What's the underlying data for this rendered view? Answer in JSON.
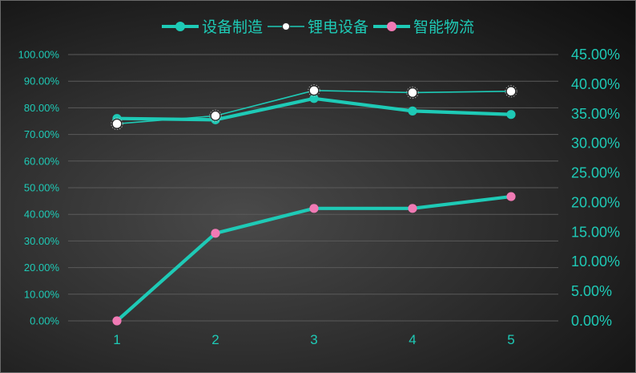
{
  "chart_data": {
    "type": "line",
    "x": [
      "1",
      "2",
      "3",
      "4",
      "5"
    ],
    "y_left": {
      "ylim": [
        0,
        1
      ],
      "ticks": [
        "0.00%",
        "10.00%",
        "20.00%",
        "30.00%",
        "40.00%",
        "50.00%",
        "60.00%",
        "70.00%",
        "80.00%",
        "90.00%",
        "100.00%"
      ]
    },
    "y_right": {
      "ylim": [
        0,
        0.45
      ],
      "ticks": [
        "0.00%",
        "5.00%",
        "10.00%",
        "15.00%",
        "20.00%",
        "25.00%",
        "30.00%",
        "35.00%",
        "40.00%",
        "45.00%"
      ]
    },
    "series": [
      {
        "name": "设备制造",
        "axis": "left",
        "values": [
          0.76,
          0.755,
          0.835,
          0.788,
          0.775
        ],
        "color": "#1ecab6",
        "marker_color": "#1ecab6",
        "style": "thick"
      },
      {
        "name": "锂电设备",
        "axis": "left",
        "values": [
          0.74,
          0.77,
          0.865,
          0.857,
          0.862
        ],
        "color": "#1ecab6",
        "marker_color": "#ffffff",
        "style": "thin"
      },
      {
        "name": "智能物流",
        "axis": "right",
        "values": [
          0.0,
          0.148,
          0.19,
          0.19,
          0.21
        ],
        "color": "#1ecab6",
        "marker_color": "#f07ab4",
        "style": "thick"
      }
    ],
    "grid": true,
    "legend": "top-center"
  },
  "colors": {
    "line": "#1ecab6",
    "grid": "#5a5a5a",
    "marker_white": "#ffffff",
    "marker_pink": "#f07ab4"
  }
}
